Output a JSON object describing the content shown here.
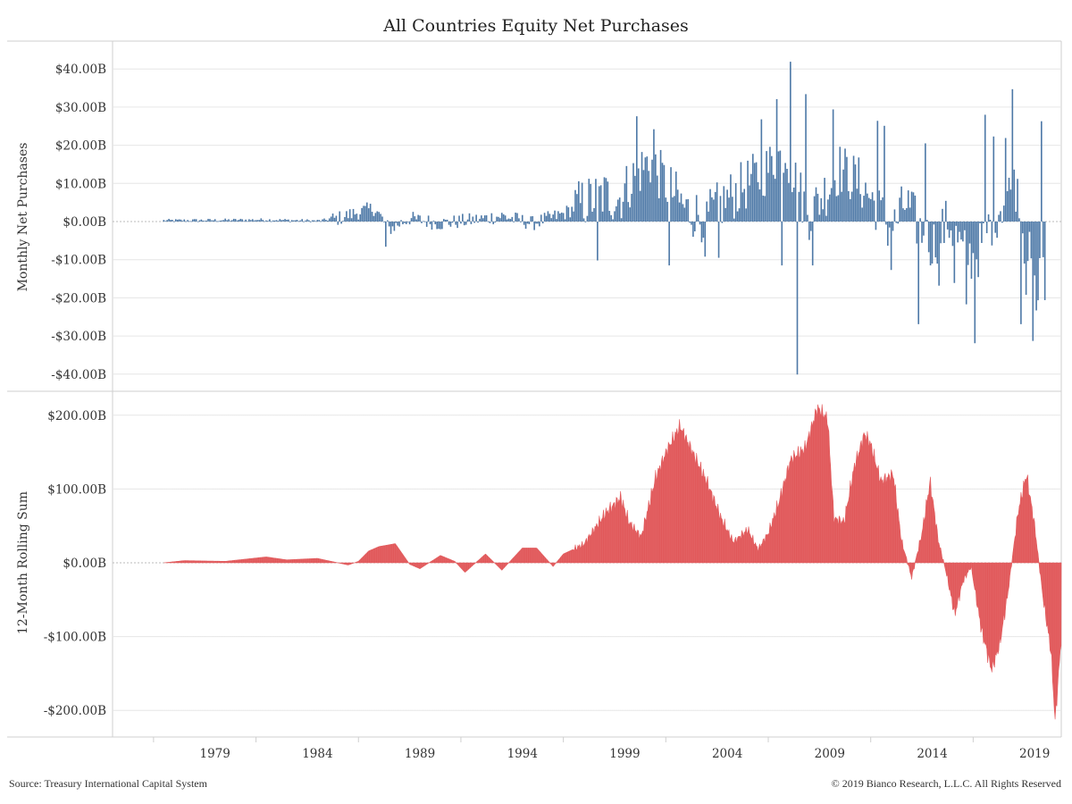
{
  "title": "All Countries Equity Net Purchases",
  "footer": {
    "source": "Source: Treasury International Capital System",
    "copyright": "© 2019 Bianco Research, L.L.C. All Rights Reserved"
  },
  "colors": {
    "top_series": "#4e79a7",
    "bottom_series": "#e15759",
    "grid": "#e6e6e6",
    "zero_line": "#bbbbbb"
  },
  "chart_data": [
    {
      "type": "bar",
      "ylabel": "Monthly Net Purchases",
      "ylim": [
        -42,
        44
      ],
      "yticks": [
        40,
        30,
        20,
        10,
        0,
        -10,
        -20,
        -30,
        -40
      ],
      "ytick_labels": [
        "$40.00B",
        "$30.00B",
        "$20.00B",
        "$10.00B",
        "$0.00B",
        "-$10.00B",
        "-$20.00B",
        "-$30.00B",
        "-$40.00B"
      ],
      "x_start": "1977-01",
      "x_end": "2019-12",
      "grid": true,
      "anchors": [
        [
          1977.0,
          0.3
        ],
        [
          1980.0,
          0.4
        ],
        [
          1982.0,
          0.5
        ],
        [
          1984.5,
          0.2
        ],
        [
          1985.5,
          0.8
        ],
        [
          1986.5,
          2.5
        ],
        [
          1987.3,
          3.5
        ],
        [
          1988.0,
          -2.0
        ],
        [
          1989.0,
          0.8
        ],
        [
          1990.5,
          -0.5
        ],
        [
          1992.0,
          0.3
        ],
        [
          1993.5,
          1.5
        ],
        [
          1995.0,
          -0.5
        ],
        [
          1996.5,
          2.0
        ],
        [
          1997.5,
          5.0
        ],
        [
          1998.5,
          7.0
        ],
        [
          1999.2,
          6.0
        ],
        [
          2000.0,
          12.0
        ],
        [
          2000.7,
          16.0
        ],
        [
          2001.5,
          10.0
        ],
        [
          2002.5,
          3.0
        ],
        [
          2003.5,
          1.0
        ],
        [
          2004.5,
          6.0
        ],
        [
          2005.5,
          10.0
        ],
        [
          2006.5,
          14.0
        ],
        [
          2007.3,
          19.0
        ],
        [
          2008.0,
          8.0
        ],
        [
          2008.5,
          2.0
        ],
        [
          2009.3,
          8.0
        ],
        [
          2010.0,
          14.0
        ],
        [
          2011.0,
          10.0
        ],
        [
          2011.8,
          4.0
        ],
        [
          2012.5,
          -3.0
        ],
        [
          2013.2,
          5.0
        ],
        [
          2013.9,
          -2.0
        ],
        [
          2014.5,
          -6.0
        ],
        [
          2015.3,
          0.0
        ],
        [
          2016.0,
          -8.0
        ],
        [
          2016.6,
          -10.0
        ],
        [
          2017.2,
          -2.0
        ],
        [
          2018.0,
          6.0
        ],
        [
          2018.7,
          10.0
        ],
        [
          2019.0,
          -5.0
        ],
        [
          2019.4,
          -12.0
        ],
        [
          2019.7,
          -15.0
        ],
        [
          2020.0,
          -6.0
        ]
      ],
      "spikes": [
        [
          1987.8,
          -6.6
        ],
        [
          1998.2,
          -10.2
        ],
        [
          2000.1,
          27.6
        ],
        [
          2000.9,
          24.2
        ],
        [
          2001.7,
          -11.5
        ],
        [
          2003.4,
          -9.2
        ],
        [
          2004.1,
          -9.5
        ],
        [
          2006.2,
          26.8
        ],
        [
          2006.9,
          32.1
        ],
        [
          2007.2,
          -11.5
        ],
        [
          2007.6,
          41.9
        ],
        [
          2007.9,
          -40.1
        ],
        [
          2008.3,
          33.4
        ],
        [
          2008.7,
          -11.5
        ],
        [
          2009.7,
          29.4
        ],
        [
          2011.8,
          26.4
        ],
        [
          2012.2,
          25.1
        ],
        [
          2012.5,
          -12.7
        ],
        [
          2013.8,
          -26.9
        ],
        [
          2014.2,
          20.5
        ],
        [
          2014.8,
          -16.8
        ],
        [
          2015.6,
          -16.1
        ],
        [
          2016.2,
          -21.7
        ],
        [
          2016.6,
          -31.9
        ],
        [
          2017.1,
          28.0
        ],
        [
          2017.5,
          22.3
        ],
        [
          2018.1,
          21.9
        ],
        [
          2018.4,
          34.7
        ],
        [
          2018.8,
          -26.9
        ],
        [
          2019.1,
          -19.2
        ],
        [
          2019.4,
          -31.3
        ],
        [
          2019.6,
          -23.3
        ],
        [
          2019.8,
          26.3
        ],
        [
          2020.0,
          -20.6
        ]
      ]
    },
    {
      "type": "area",
      "ylabel": "12-Month Rolling Sum",
      "ylim": [
        -215,
        215
      ],
      "yticks": [
        200,
        100,
        0,
        -100,
        -200
      ],
      "ytick_labels": [
        "$200.00B",
        "$100.00B",
        "$0.00B",
        "-$100.00B",
        "-$200.00B"
      ],
      "x_start": "1977-01",
      "x_end": "2019-12",
      "grid": true,
      "points": [
        [
          1977.0,
          0.0
        ],
        [
          1978.0,
          3.0
        ],
        [
          1980.0,
          2.0
        ],
        [
          1982.0,
          8.0
        ],
        [
          1983.0,
          4.0
        ],
        [
          1984.5,
          6.0
        ],
        [
          1985.5,
          0.0
        ],
        [
          1986.0,
          -3.0
        ],
        [
          1986.5,
          2.0
        ],
        [
          1987.0,
          16.0
        ],
        [
          1987.5,
          22.0
        ],
        [
          1988.3,
          26.0
        ],
        [
          1989.0,
          -2.0
        ],
        [
          1989.5,
          -8.0
        ],
        [
          1990.5,
          10.0
        ],
        [
          1991.2,
          2.0
        ],
        [
          1991.7,
          -13.0
        ],
        [
          1992.7,
          12.0
        ],
        [
          1993.5,
          -10.0
        ],
        [
          1994.5,
          20.0
        ],
        [
          1995.2,
          20.0
        ],
        [
          1996.0,
          -5.0
        ],
        [
          1996.5,
          12.0
        ],
        [
          1997.5,
          25.0
        ],
        [
          1998.5,
          65.0
        ],
        [
          1999.3,
          88.0
        ],
        [
          1999.7,
          55.0
        ],
        [
          2000.3,
          35.0
        ],
        [
          2001.0,
          115.0
        ],
        [
          2001.6,
          155.0
        ],
        [
          2002.2,
          185.0
        ],
        [
          2002.8,
          150.0
        ],
        [
          2003.5,
          110.0
        ],
        [
          2004.2,
          60.0
        ],
        [
          2004.8,
          28.0
        ],
        [
          2005.5,
          45.0
        ],
        [
          2006.0,
          18.0
        ],
        [
          2006.5,
          40.0
        ],
        [
          2007.0,
          80.0
        ],
        [
          2007.6,
          140.0
        ],
        [
          2008.3,
          155.0
        ],
        [
          2008.9,
          210.0
        ],
        [
          2009.4,
          195.0
        ],
        [
          2009.7,
          60.0
        ],
        [
          2010.2,
          55.0
        ],
        [
          2010.7,
          130.0
        ],
        [
          2011.2,
          175.0
        ],
        [
          2011.5,
          160.0
        ],
        [
          2012.0,
          110.0
        ],
        [
          2012.6,
          120.0
        ],
        [
          2013.0,
          30.0
        ],
        [
          2013.5,
          -20.0
        ],
        [
          2014.0,
          40.0
        ],
        [
          2014.4,
          110.0
        ],
        [
          2014.8,
          30.0
        ],
        [
          2015.2,
          -15.0
        ],
        [
          2015.6,
          -70.0
        ],
        [
          2016.0,
          -25.0
        ],
        [
          2016.4,
          -5.0
        ],
        [
          2016.9,
          -90.0
        ],
        [
          2017.4,
          -145.0
        ],
        [
          2017.8,
          -110.0
        ],
        [
          2018.2,
          -40.0
        ],
        [
          2018.7,
          70.0
        ],
        [
          2019.1,
          120.0
        ],
        [
          2019.5,
          50.0
        ],
        [
          2019.9,
          -45.0
        ],
        [
          2020.3,
          -120.0
        ],
        [
          2020.5,
          -215.0
        ],
        [
          2020.8,
          -100.0
        ]
      ]
    }
  ],
  "x_ticks": [
    "1979",
    "1984",
    "1989",
    "1994",
    "1999",
    "2004",
    "2009",
    "2014",
    "2019"
  ]
}
